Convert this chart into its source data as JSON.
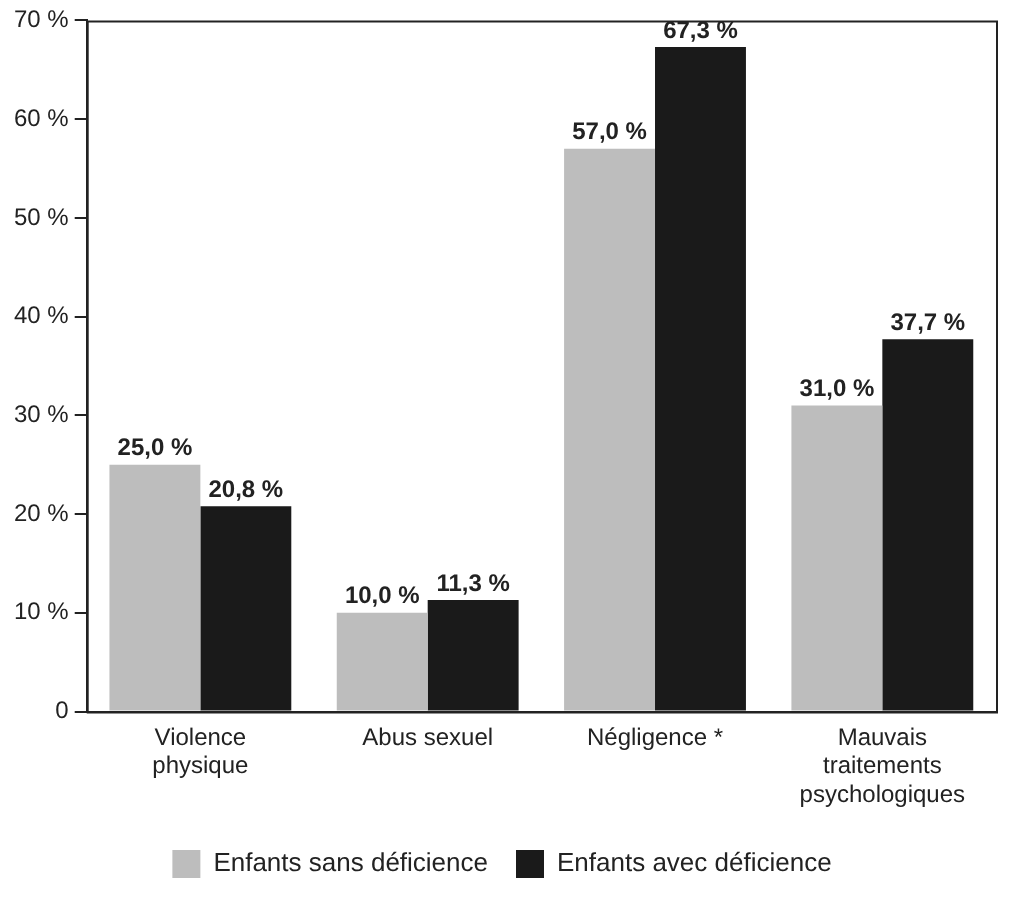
{
  "chart_data": {
    "type": "bar",
    "categories": [
      "Violence physique",
      "Abus sexuel",
      "Négligence *",
      "Mauvais traitements psychologiques"
    ],
    "series": [
      {
        "name": "Enfants sans déficience",
        "color": "#bdbdbd",
        "values": [
          25.0,
          10.0,
          57.0,
          31.0
        ],
        "value_labels": [
          "25,0 %",
          "10,0 %",
          "57,0 %",
          "31,0 %"
        ]
      },
      {
        "name": "Enfants avec déficience",
        "color": "#1a1a1a",
        "values": [
          20.8,
          11.3,
          67.3,
          37.7
        ],
        "value_labels": [
          "20,8 %",
          "11,3 %",
          "67,3 %",
          "37,7 %"
        ]
      }
    ],
    "ylim": [
      0,
      70
    ],
    "yticks": [
      0,
      {
        "value": 10,
        "label": "10 %"
      },
      {
        "value": 20,
        "label": "20 %"
      },
      {
        "value": 30,
        "label": "30 %"
      },
      {
        "value": 40,
        "label": "40 %"
      },
      {
        "value": 50,
        "label": "50 %"
      },
      {
        "value": 60,
        "label": "60 %"
      },
      {
        "value": 70,
        "label": "70 %"
      }
    ],
    "grid": false,
    "legend": "bottom"
  }
}
